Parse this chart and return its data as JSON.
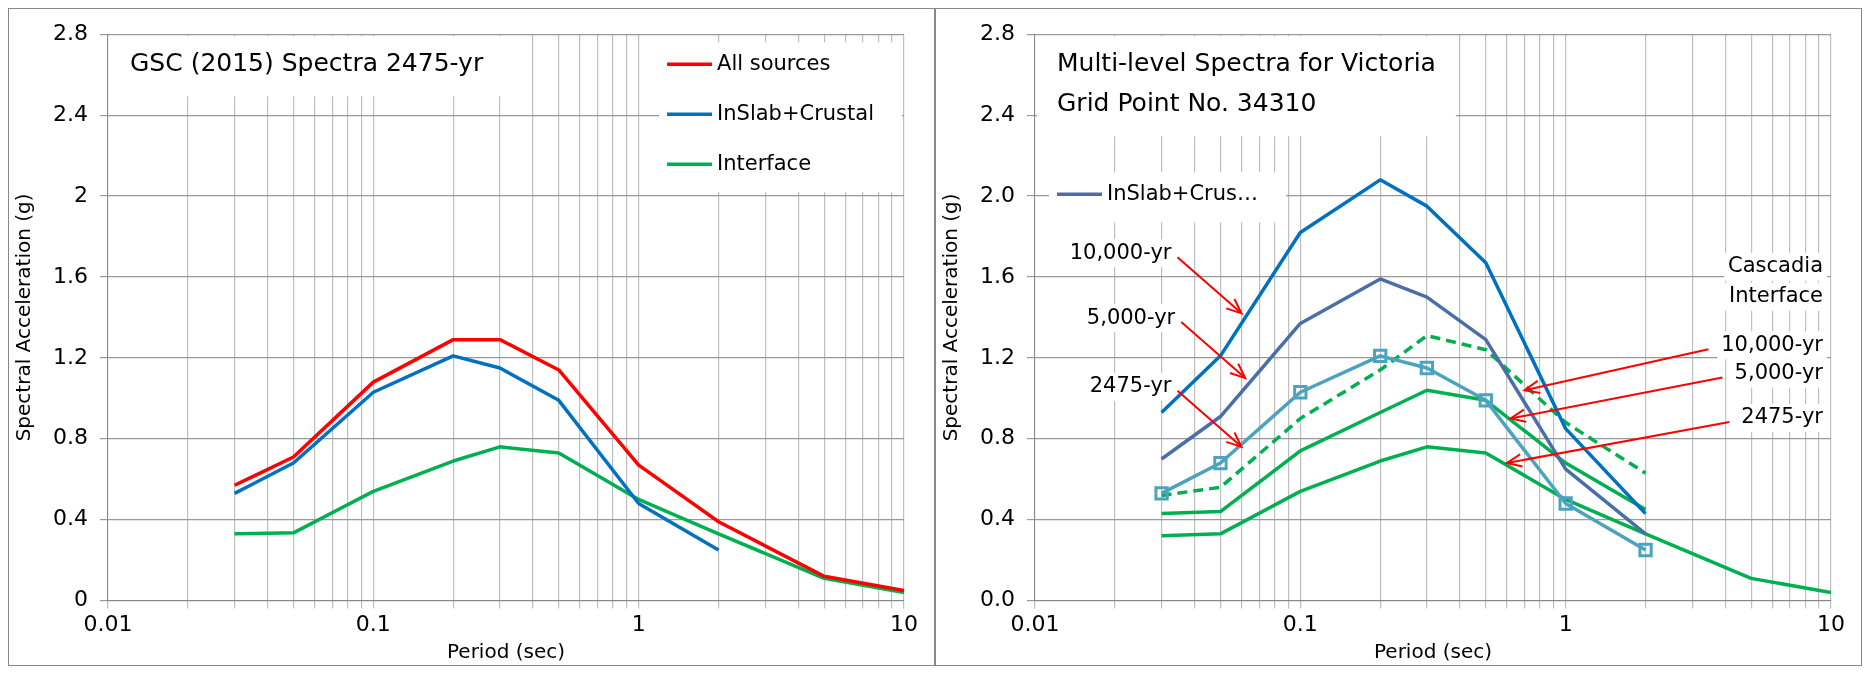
{
  "chart_data": [
    {
      "type": "line",
      "title": "GSC (2015) Spectra 2475-yr",
      "xlabel": "Period (sec)",
      "ylabel": "Spectral Acceleration (g)",
      "log": "x",
      "grid": true,
      "legend": "top right",
      "marker": "none",
      "x": [
        0.03,
        0.05,
        0.1,
        0.2,
        0.3,
        0.5,
        1,
        2,
        5,
        10
      ],
      "xlim": [
        0.01,
        10
      ],
      "xticks": [
        0.01,
        {
          "value": 0.02,
          "label": null
        },
        {
          "value": 0.03,
          "label": null
        },
        {
          "value": 0.04,
          "label": null
        },
        {
          "value": 0.05,
          "label": null
        },
        {
          "value": 0.06,
          "label": null
        },
        {
          "value": 0.07,
          "label": null
        },
        {
          "value": 0.08,
          "label": null
        },
        {
          "value": 0.09,
          "label": null
        },
        0.1,
        {
          "value": 0.2,
          "label": null
        },
        {
          "value": 0.3,
          "label": null
        },
        {
          "value": 0.4,
          "label": null
        },
        {
          "value": 0.5,
          "label": null
        },
        {
          "value": 0.6,
          "label": null
        },
        {
          "value": 0.7,
          "label": null
        },
        {
          "value": 0.8,
          "label": null
        },
        {
          "value": 0.9,
          "label": null
        },
        1,
        {
          "value": 2,
          "label": null
        },
        {
          "value": 3,
          "label": null
        },
        {
          "value": 4,
          "label": null
        },
        {
          "value": 5,
          "label": null
        },
        {
          "value": 6,
          "label": null
        },
        {
          "value": 7,
          "label": null
        },
        {
          "value": 8,
          "label": null
        },
        {
          "value": 9,
          "label": null
        },
        10
      ],
      "ylim": [
        0,
        2.8
      ],
      "yticks": [
        0,
        0.4,
        0.8,
        1.2,
        1.6,
        2,
        2.4,
        2.8
      ],
      "series": [
        {
          "name": "All sources",
          "color": "#ff0000",
          "values": [
            0.57,
            0.71,
            1.08,
            1.29,
            1.29,
            1.14,
            0.67,
            0.39,
            0.12,
            0.05
          ]
        },
        {
          "name": "InSlab+Crustal",
          "color": "#0070c0",
          "values": [
            0.53,
            0.68,
            1.03,
            1.21,
            1.15,
            0.99,
            0.48,
            0.25,
            null,
            null
          ]
        },
        {
          "name": "Interface",
          "color": "#00b050",
          "values": [
            0.33,
            0.335,
            0.54,
            0.69,
            0.76,
            0.73,
            0.5,
            0.33,
            0.11,
            0.04
          ]
        }
      ]
    },
    {
      "type": "line",
      "title": "Multi-level Spectra for Victoria",
      "subtitle": "Grid Point No. 34310",
      "xlabel": "Period (sec)",
      "ylabel": "Spectral Acceleration (g)",
      "log": "x",
      "grid": true,
      "legend": "top left",
      "marker": "none",
      "x": [
        0.03,
        0.05,
        0.1,
        0.2,
        0.3,
        0.5,
        1,
        2,
        5,
        10
      ],
      "xlim": [
        0.01,
        10
      ],
      "xticks": [
        0.01,
        {
          "value": 0.02,
          "label": null
        },
        {
          "value": 0.03,
          "label": null
        },
        {
          "value": 0.04,
          "label": null
        },
        {
          "value": 0.05,
          "label": null
        },
        {
          "value": 0.06,
          "label": null
        },
        {
          "value": 0.07,
          "label": null
        },
        {
          "value": 0.08,
          "label": null
        },
        {
          "value": 0.09,
          "label": null
        },
        0.1,
        {
          "value": 0.2,
          "label": null
        },
        {
          "value": 0.3,
          "label": null
        },
        {
          "value": 0.4,
          "label": null
        },
        {
          "value": 0.5,
          "label": null
        },
        {
          "value": 0.6,
          "label": null
        },
        {
          "value": 0.7,
          "label": null
        },
        {
          "value": 0.8,
          "label": null
        },
        {
          "value": 0.9,
          "label": null
        },
        1,
        {
          "value": 2,
          "label": null
        },
        {
          "value": 3,
          "label": null
        },
        {
          "value": 4,
          "label": null
        },
        {
          "value": 5,
          "label": null
        },
        {
          "value": 6,
          "label": null
        },
        {
          "value": 7,
          "label": null
        },
        {
          "value": 8,
          "label": null
        },
        {
          "value": 9,
          "label": null
        },
        10
      ],
      "ylim": [
        0,
        2.8
      ],
      "yticks": [
        {
          "value": 0,
          "label": "0.0"
        },
        0.4,
        0.8,
        1.2,
        1.6,
        {
          "value": 2,
          "label": "2.0"
        },
        2.4,
        2.8
      ],
      "series": [
        {
          "color": "#0070c0",
          "values": [
            0.93,
            1.21,
            1.82,
            2.08,
            1.95,
            1.67,
            0.85,
            0.43,
            null,
            null
          ]
        },
        {
          "name": "InSlab+Crus…",
          "color": "#4a6fa8",
          "values": [
            0.7,
            0.91,
            1.37,
            1.59,
            1.5,
            1.29,
            0.65,
            0.33,
            null,
            null
          ]
        },
        {
          "color": "#4ba3c0",
          "marker": "square",
          "values": [
            0.53,
            0.68,
            1.03,
            1.21,
            1.15,
            0.99,
            0.48,
            0.25,
            null,
            null
          ]
        },
        {
          "color": "#00b050",
          "line_style": "dashed",
          "values": [
            0.52,
            0.56,
            0.9,
            1.14,
            1.31,
            1.24,
            0.88,
            0.63,
            null,
            null
          ]
        },
        {
          "color": "#00b050",
          "values": [
            0.43,
            0.44,
            0.74,
            0.93,
            1.04,
            0.99,
            0.68,
            0.45,
            null,
            null
          ]
        },
        {
          "color": "#00b050",
          "values": [
            0.32,
            0.33,
            0.54,
            0.69,
            0.76,
            0.73,
            0.5,
            0.33,
            0.11,
            0.04
          ]
        }
      ],
      "annotations": [
        {
          "text": "10,000-yr",
          "x": 0.06,
          "y": 1.42
        },
        {
          "text": "5,000-yr",
          "x": 0.062,
          "y": 1.1
        },
        {
          "text": "2475-yr",
          "x": 0.06,
          "y": 0.76
        },
        "Cascadia Interface",
        {
          "text": "10,000-yr",
          "x": 0.7,
          "y": 1.04
        },
        {
          "text": "5,000-yr",
          "x": 0.62,
          "y": 0.9
        },
        {
          "text": "2475-yr",
          "x": 0.6,
          "y": 0.68
        }
      ]
    }
  ]
}
